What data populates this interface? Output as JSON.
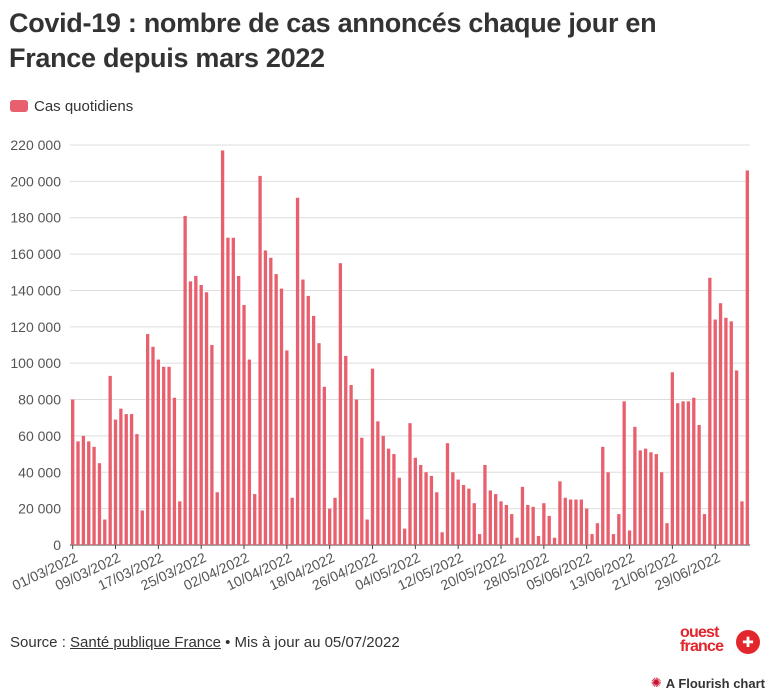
{
  "title": "Covid-19 : nombre de cas annoncés chaque jour en France depuis mars 2022",
  "legend": {
    "label": "Cas quotidiens",
    "color": "#e8606e"
  },
  "source": {
    "prefix": "Source : ",
    "link_text": "Santé publique France",
    "suffix": " • Mis à jour au 05/07/2022"
  },
  "logo": {
    "line1": "ouest",
    "line2": "france"
  },
  "flourish": {
    "label": "A Flourish chart",
    "icon": "flourish-star-icon"
  },
  "colors": {
    "bar": "#e8606e",
    "brand": "#e3252c"
  },
  "chart_data": {
    "type": "bar",
    "title": "Covid-19 : nombre de cas annoncés chaque jour en France depuis mars 2022",
    "series": [
      {
        "name": "Cas quotidiens"
      }
    ],
    "ylim": [
      0,
      220000
    ],
    "yticks": [
      0,
      20000,
      40000,
      60000,
      80000,
      100000,
      120000,
      140000,
      160000,
      180000,
      200000,
      220000
    ],
    "ytick_labels": [
      "0",
      "20 000",
      "40 000",
      "60 000",
      "80 000",
      "100 000",
      "120 000",
      "140 000",
      "160 000",
      "180 000",
      "200 000",
      "220 000"
    ],
    "xtick_labels": [
      "01/03/2022",
      "09/03/2022",
      "17/03/2022",
      "25/03/2022",
      "02/04/2022",
      "10/04/2022",
      "18/04/2022",
      "26/04/2022",
      "04/05/2022",
      "12/05/2022",
      "20/05/2022",
      "28/05/2022",
      "05/06/2022",
      "13/06/2022",
      "21/06/2022",
      "29/06/2022"
    ],
    "xtick_interval_days": 8,
    "start_date": "01/03/2022",
    "end_date": "05/07/2022",
    "values": [
      80000,
      57000,
      60000,
      57000,
      54000,
      45000,
      14000,
      93000,
      69000,
      75000,
      72000,
      72000,
      61000,
      19000,
      116000,
      109000,
      102000,
      98000,
      98000,
      81000,
      24000,
      181000,
      145000,
      148000,
      143000,
      139000,
      110000,
      29000,
      217000,
      169000,
      169000,
      148000,
      132000,
      102000,
      28000,
      203000,
      162000,
      158000,
      149000,
      141000,
      107000,
      26000,
      191000,
      146000,
      137000,
      126000,
      111000,
      87000,
      20000,
      26000,
      155000,
      104000,
      88000,
      80000,
      59000,
      14000,
      97000,
      68000,
      60000,
      53000,
      50000,
      37000,
      9000,
      67000,
      48000,
      44000,
      40000,
      38000,
      29000,
      7000,
      56000,
      40000,
      36000,
      33000,
      31000,
      23000,
      6000,
      44000,
      30000,
      28000,
      24000,
      22000,
      17000,
      4000,
      32000,
      22000,
      21000,
      5000,
      23000,
      16000,
      4000,
      35000,
      26000,
      25000,
      25000,
      25000,
      20000,
      6000,
      12000,
      54000,
      40000,
      6000,
      17000,
      79000,
      8000,
      65000,
      52000,
      53000,
      51000,
      50000,
      40000,
      12000,
      95000,
      78000,
      79000,
      79000,
      81000,
      66000,
      17000,
      147000,
      124000,
      133000,
      125000,
      123000,
      96000,
      24000,
      206000
    ]
  }
}
